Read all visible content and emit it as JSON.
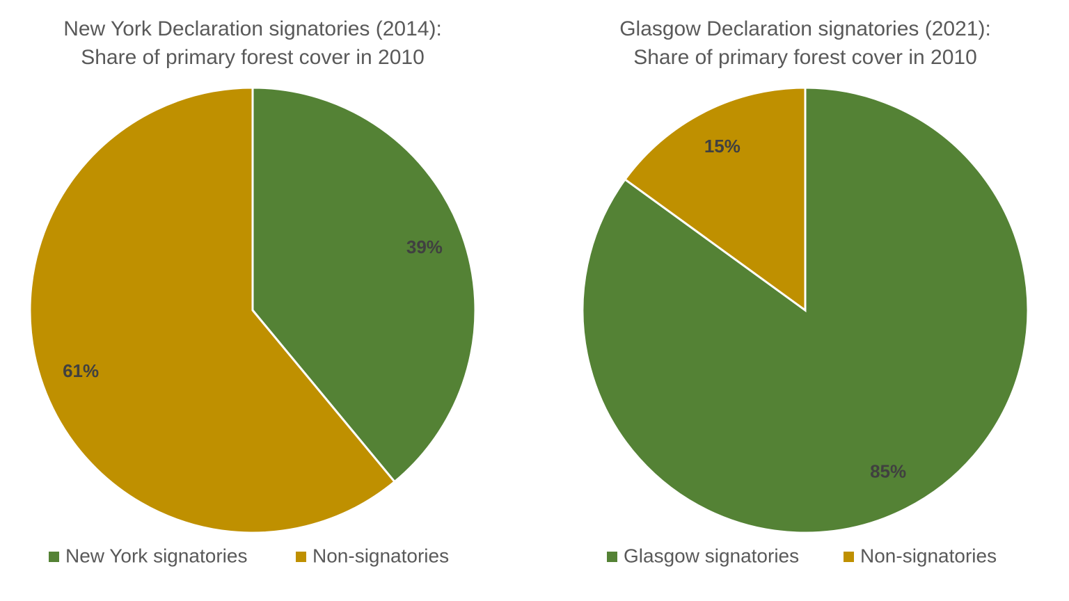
{
  "chart_data": [
    {
      "type": "pie",
      "title": [
        "New York Declaration signatories (2014):",
        "Share of primary forest cover in 2010"
      ],
      "categories": [
        "New York signatories",
        "Non-signatories"
      ],
      "values": [
        39,
        61
      ],
      "value_labels": [
        "39%",
        "61%"
      ],
      "colors": [
        "#548235",
        "#bf9000"
      ]
    },
    {
      "type": "pie",
      "title": [
        "Glasgow Declaration signatories (2021):",
        "Share of primary forest cover in 2010"
      ],
      "categories": [
        "Glasgow signatories",
        "Non-signatories"
      ],
      "values": [
        85,
        15
      ],
      "value_labels": [
        "85%",
        "15%"
      ],
      "colors": [
        "#548235",
        "#bf9000"
      ]
    }
  ]
}
